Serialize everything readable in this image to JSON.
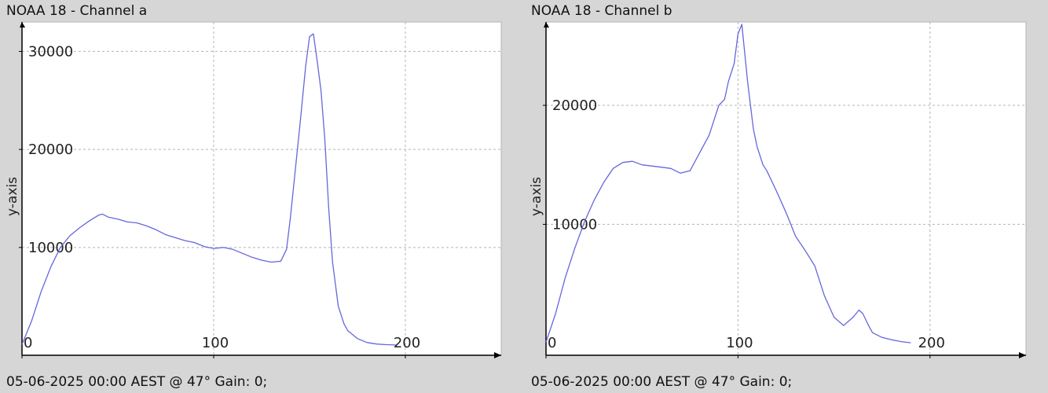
{
  "panels": [
    {
      "title": "NOAA 18 - Channel a",
      "footer": "05-06-2025 00:00 AEST @ 47° Gain: 0;"
    },
    {
      "title": "NOAA 18 - Channel b",
      "footer": "05-06-2025 00:00 AEST @ 47° Gain: 0;"
    }
  ],
  "colors": {
    "line": "#6666dd",
    "grid": "#b4b4b4",
    "axis": "#000000",
    "plot_bg": "#ffffff",
    "page_bg": "#d6d6d6"
  },
  "chart_data": [
    {
      "type": "line",
      "title": "",
      "xlabel": "",
      "ylabel": "y-axis",
      "xlim": [
        0,
        250
      ],
      "ylim": [
        -1000,
        33000
      ],
      "x_ticks": [
        "0",
        "100",
        "200"
      ],
      "x_tick_values": [
        0,
        100,
        200
      ],
      "y_ticks": [
        "10000",
        "20000",
        "30000"
      ],
      "y_tick_values": [
        10000,
        20000,
        30000
      ],
      "grid": true,
      "series": [
        {
          "x": [
            0,
            5,
            10,
            15,
            20,
            25,
            30,
            35,
            40,
            42,
            45,
            50,
            55,
            60,
            65,
            70,
            75,
            80,
            85,
            90,
            95,
            100,
            105,
            110,
            115,
            120,
            125,
            130,
            135,
            138,
            140,
            145,
            148,
            150,
            152,
            154,
            156,
            158,
            160,
            162,
            165,
            168,
            170,
            175,
            180,
            185,
            190,
            195
          ],
          "y": [
            100,
            2500,
            5500,
            8000,
            10000,
            11200,
            12000,
            12700,
            13300,
            13400,
            13100,
            12900,
            12600,
            12500,
            12200,
            11800,
            11300,
            11000,
            10700,
            10500,
            10100,
            9900,
            10000,
            9800,
            9400,
            9000,
            8700,
            8500,
            8600,
            9800,
            13000,
            22500,
            28500,
            31500,
            31800,
            29000,
            26000,
            21000,
            14000,
            8500,
            4000,
            2200,
            1500,
            700,
            300,
            150,
            80,
            50
          ]
        }
      ]
    },
    {
      "type": "line",
      "title": "",
      "xlabel": "",
      "ylabel": "y-axis",
      "xlim": [
        0,
        250
      ],
      "ylim": [
        -1000,
        27000
      ],
      "x_ticks": [
        "0",
        "100",
        "200"
      ],
      "x_tick_values": [
        0,
        100,
        200
      ],
      "y_ticks": [
        "10000",
        "20000"
      ],
      "y_tick_values": [
        10000,
        20000
      ],
      "grid": true,
      "series": [
        {
          "x": [
            0,
            5,
            10,
            15,
            20,
            25,
            30,
            35,
            40,
            45,
            50,
            55,
            60,
            65,
            70,
            75,
            80,
            85,
            88,
            90,
            93,
            95,
            98,
            100,
            102,
            105,
            108,
            110,
            113,
            115,
            120,
            125,
            130,
            135,
            140,
            145,
            150,
            155,
            160,
            163,
            165,
            168,
            170,
            175,
            180,
            185,
            190
          ],
          "y": [
            100,
            2500,
            5500,
            8000,
            10200,
            12000,
            13500,
            14700,
            15200,
            15300,
            15000,
            14900,
            14800,
            14700,
            14300,
            14500,
            16000,
            17500,
            19000,
            20000,
            20500,
            22000,
            23500,
            26000,
            26800,
            22000,
            18000,
            16500,
            15000,
            14500,
            12800,
            11000,
            9000,
            7800,
            6500,
            4000,
            2200,
            1500,
            2200,
            2800,
            2500,
            1500,
            900,
            500,
            300,
            150,
            50
          ]
        }
      ]
    }
  ]
}
